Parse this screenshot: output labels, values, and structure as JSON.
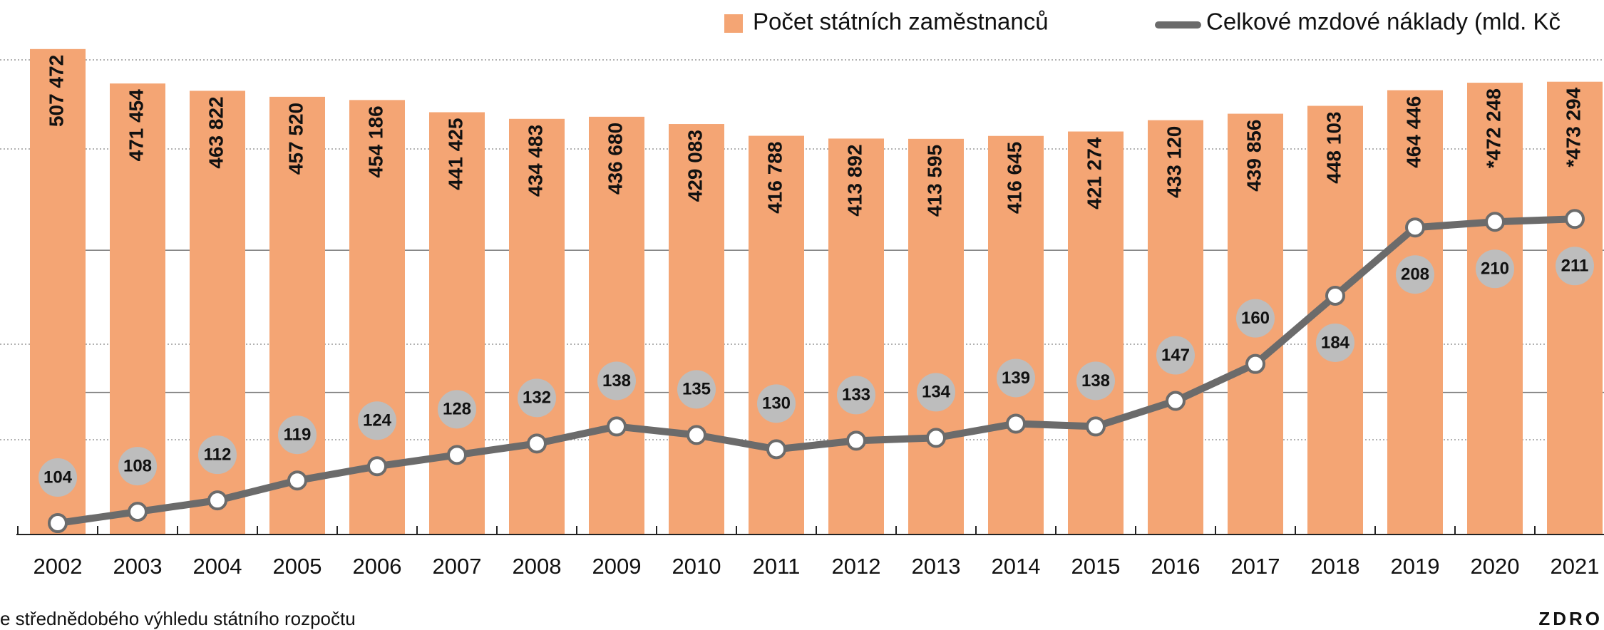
{
  "chart_data": {
    "type": "combo",
    "categories": [
      "2002",
      "2003",
      "2004",
      "2005",
      "2006",
      "2007",
      "2008",
      "2009",
      "2010",
      "2011",
      "2012",
      "2013",
      "2014",
      "2015",
      "2016",
      "2017",
      "2018",
      "2019",
      "2020",
      "2021"
    ],
    "series": [
      {
        "name": "Počet státních zaměstnanců",
        "type": "bar",
        "color": "#f4a574",
        "values": [
          507472,
          471454,
          463822,
          457520,
          454186,
          441425,
          434483,
          436680,
          429083,
          416788,
          413892,
          413595,
          416645,
          421274,
          433120,
          439856,
          448103,
          464446,
          472248,
          473294
        ],
        "value_labels": [
          "507 472",
          "471 454",
          "463 822",
          "457 520",
          "454 186",
          "441 425",
          "434 483",
          "436 680",
          "429 083",
          "416 788",
          "413 892",
          "413 595",
          "416 645",
          "421 274",
          "433 120",
          "439 856",
          "448 103",
          "464 446",
          "*472 248",
          "*473 294"
        ]
      },
      {
        "name": "Celkové mzdové náklady (mld. Kč",
        "type": "line",
        "axis": "y2",
        "color": "#6b6b6b",
        "values": [
          104,
          108,
          112,
          119,
          124,
          128,
          132,
          138,
          135,
          130,
          133,
          134,
          139,
          138,
          147,
          160,
          184,
          208,
          210,
          211
        ]
      }
    ],
    "ylim": [
      0,
      520000
    ],
    "y2lim": [
      100,
      275
    ],
    "y2ticks": [
      150,
      200
    ],
    "grid": true,
    "source_note": "e střednědobého výhledu státního rozpočtu",
    "source": "ZDRO"
  }
}
